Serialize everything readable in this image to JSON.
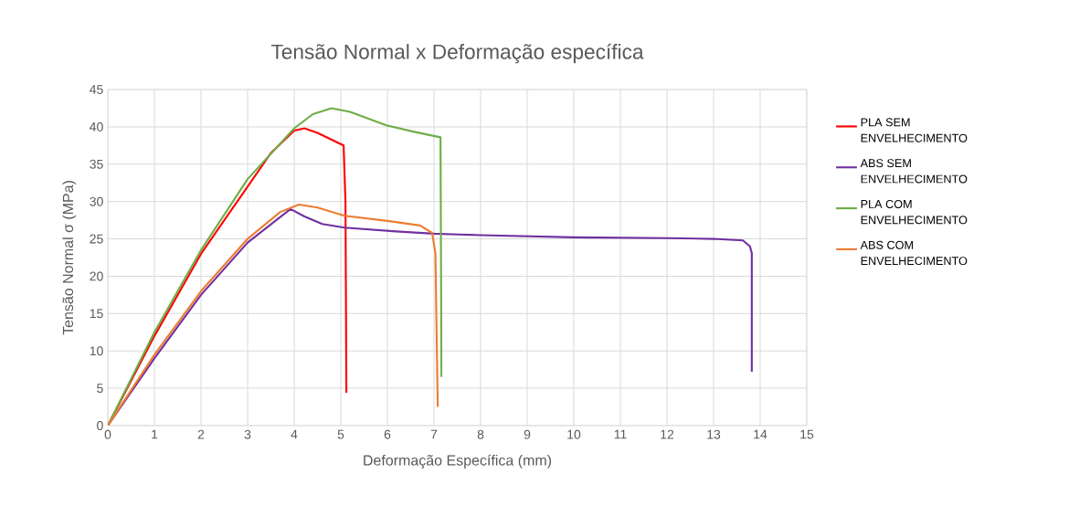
{
  "chart_data": {
    "type": "line",
    "title": "Tensão Normal x Deformação específica",
    "xlabel": "Deformação Específica (mm)",
    "ylabel": "Tensão Normal σ (MPa)",
    "xlim": [
      0,
      15
    ],
    "xticks": [
      0,
      1,
      2,
      3,
      4,
      5,
      6,
      7,
      8,
      9,
      10,
      11,
      12,
      13,
      14,
      15
    ],
    "ylim": [
      0,
      45
    ],
    "yticks": [
      0,
      5,
      10,
      15,
      20,
      25,
      30,
      35,
      40,
      45
    ],
    "grid": true,
    "legend": "right",
    "marker": "none",
    "line_style": "solid",
    "series": [
      {
        "name": "PLA SEM ENVELHECIMENTO",
        "color": "#ff0000",
        "x": [
          0,
          1,
          2,
          3,
          3.5,
          4,
          4.22,
          4.5,
          5.06,
          5.1,
          5.12
        ],
        "values": [
          0,
          12,
          23,
          32,
          36.5,
          39.5,
          39.8,
          39.2,
          37.5,
          30,
          4.4
        ]
      },
      {
        "name": "ABS SEM ENVELHECIMENTO",
        "color": "#7030a0",
        "x": [
          0,
          1,
          2,
          3,
          3.92,
          4.22,
          4.6,
          5.08,
          6.18,
          7,
          8,
          10,
          12,
          13,
          13.63,
          13.78,
          13.82,
          13.82
        ],
        "values": [
          0,
          9,
          17.5,
          24.5,
          29,
          28,
          27,
          26.5,
          26,
          25.7,
          25.5,
          25.2,
          25.1,
          25,
          24.8,
          24,
          23.1,
          7.2
        ]
      },
      {
        "name": "PLA COM ENVELHECIMENTO",
        "color": "#70ad47",
        "x": [
          0,
          1,
          2,
          3,
          4,
          4.4,
          4.8,
          5.2,
          5.98,
          6.6,
          7.14,
          7.16
        ],
        "values": [
          0,
          12.5,
          23.5,
          33,
          39.8,
          41.7,
          42.5,
          42,
          40.2,
          39.3,
          38.6,
          6.5
        ]
      },
      {
        "name": "ABS COM ENVELHECIMENTO",
        "color": "#ed7d31",
        "x": [
          0,
          1,
          2,
          3,
          3.7,
          4.1,
          4.5,
          5.08,
          6,
          6.7,
          6.96,
          7.03,
          7.08
        ],
        "values": [
          0,
          9.5,
          18,
          25,
          28.6,
          29.6,
          29.2,
          28.1,
          27.4,
          26.8,
          25.8,
          23.1,
          2.5
        ]
      }
    ]
  }
}
